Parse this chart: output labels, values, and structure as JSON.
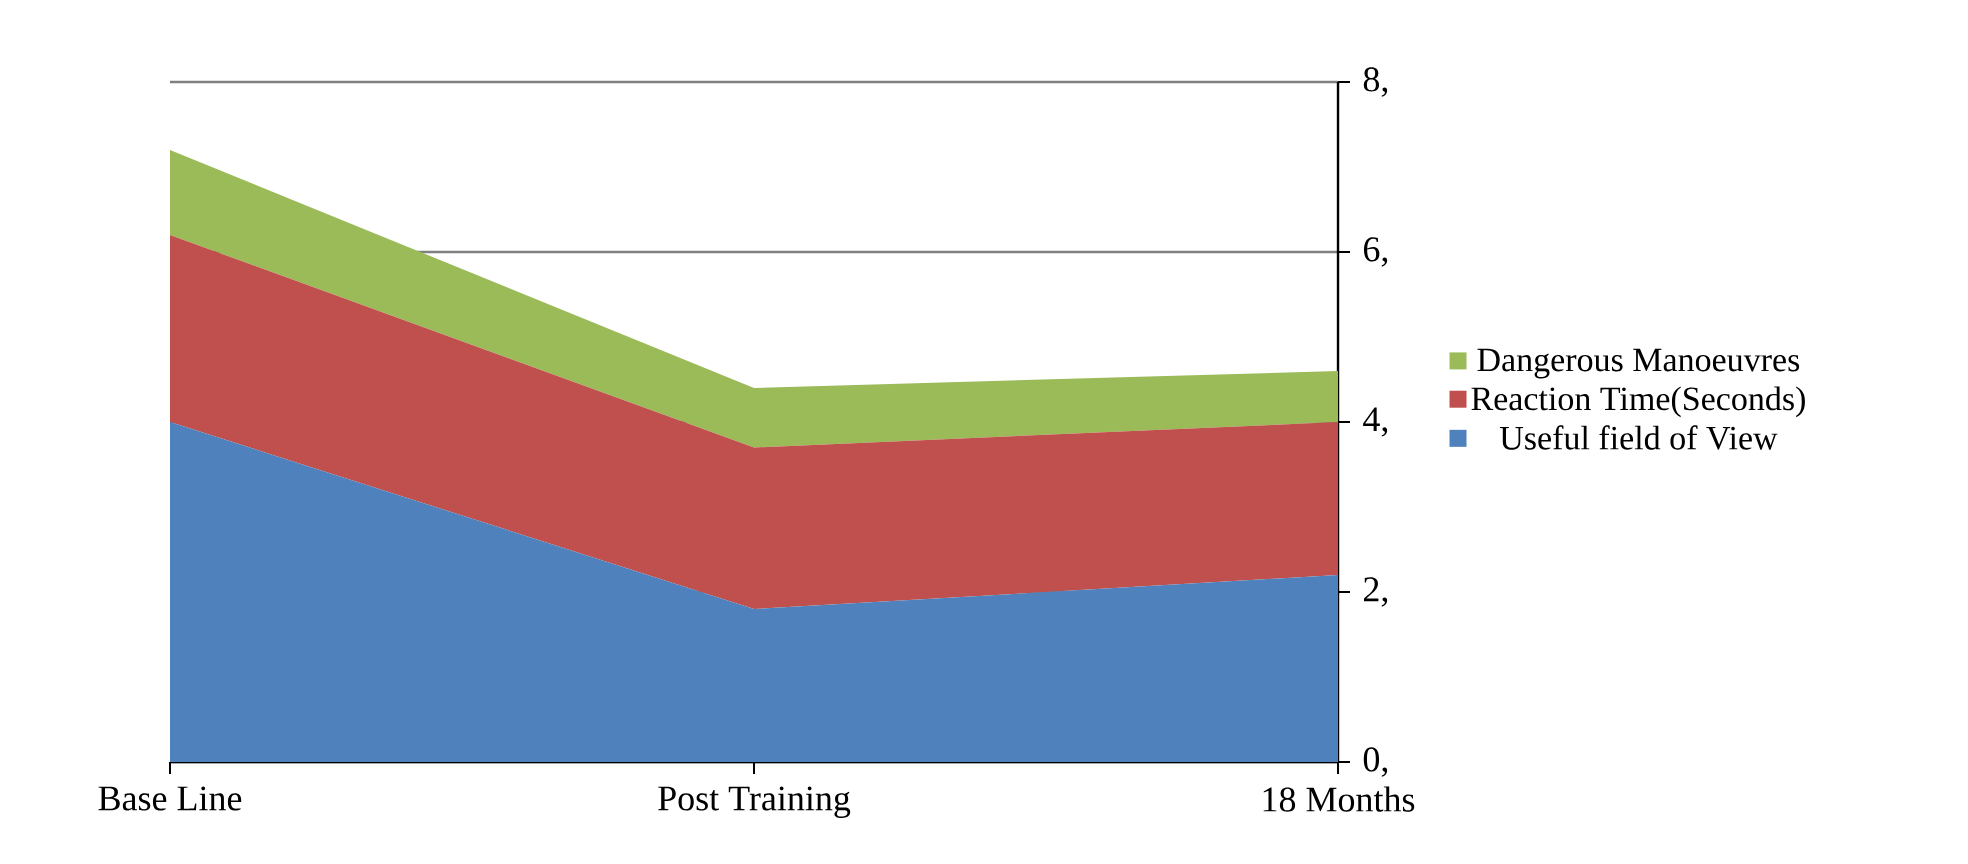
{
  "chart_data": {
    "type": "area",
    "stacked": true,
    "categories": [
      "Base Line",
      "Post Training",
      "18 Months"
    ],
    "series": [
      {
        "name": "Useful field of View",
        "color": "#4f81bd",
        "values": [
          4.0,
          1.8,
          2.2
        ]
      },
      {
        "name": "Reaction Time(Seconds)",
        "color": "#c0504d",
        "values": [
          2.2,
          1.9,
          1.8
        ]
      },
      {
        "name": "Dangerous Manoeuvres",
        "color": "#9bbb59",
        "values": [
          1.0,
          0.7,
          0.6
        ]
      }
    ],
    "ylim": [
      0,
      8
    ],
    "yticks": [
      {
        "value": 0,
        "label": "0,"
      },
      {
        "value": 2,
        "label": "2,"
      },
      {
        "value": 4,
        "label": "4,"
      },
      {
        "value": 6,
        "label": "6,"
      },
      {
        "value": 8,
        "label": "8,"
      }
    ],
    "grid": "y",
    "legend": "right"
  }
}
